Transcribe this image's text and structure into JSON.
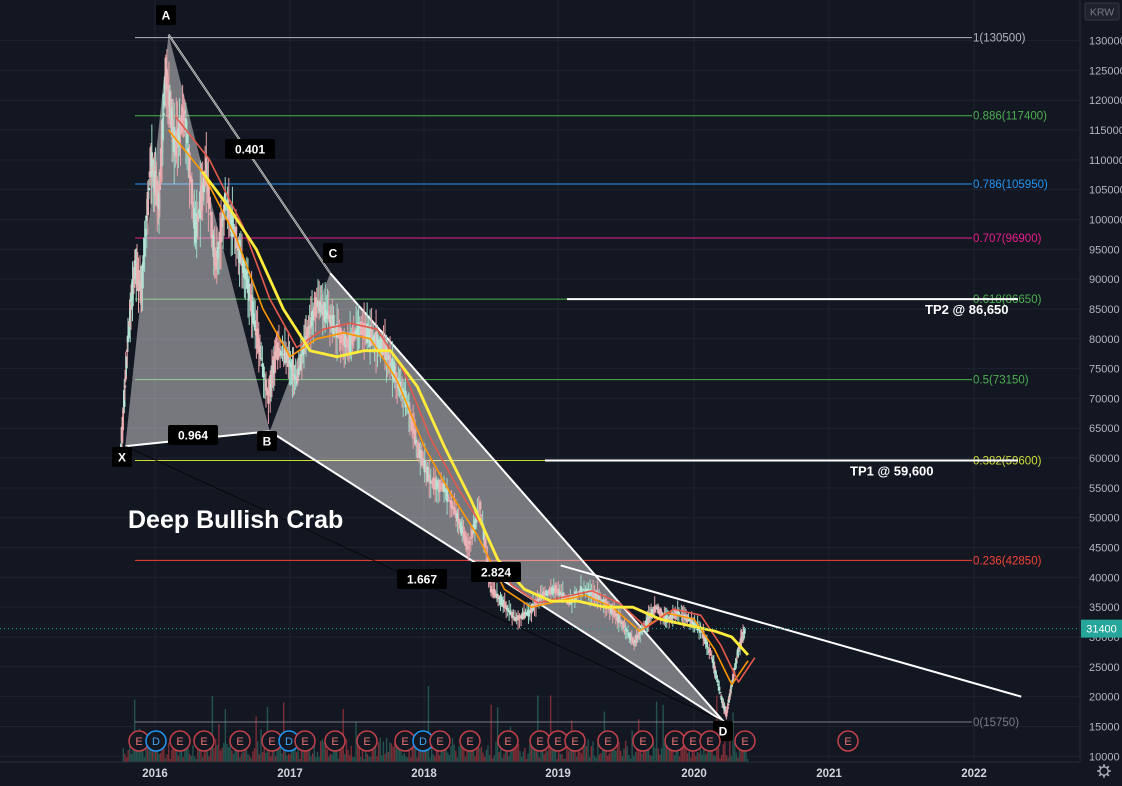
{
  "chart_data": {
    "type": "candlestick",
    "currency": "KRW",
    "x_ticks": [
      "2016",
      "2017",
      "2018",
      "2019",
      "2020",
      "2021",
      "2022"
    ],
    "y_ticks": [
      10000,
      15000,
      20000,
      25000,
      30000,
      35000,
      40000,
      45000,
      50000,
      55000,
      60000,
      65000,
      70000,
      75000,
      80000,
      85000,
      90000,
      95000,
      100000,
      105000,
      110000,
      115000,
      120000,
      125000,
      130000
    ],
    "ylim": [
      9000,
      135000
    ],
    "last_price": {
      "value": 31400,
      "label": "31400"
    },
    "fib_levels": [
      {
        "ratio": "1",
        "value": 130500,
        "label": "1(130500)",
        "color": "#b2b5be"
      },
      {
        "ratio": "0.886",
        "value": 117400,
        "label": "0.886(117400)",
        "color": "#4caf50"
      },
      {
        "ratio": "0.786",
        "value": 105950,
        "label": "0.786(105950)",
        "color": "#2196f3"
      },
      {
        "ratio": "0.707",
        "value": 96900,
        "label": "0.707(96900)",
        "color": "#e91e8c"
      },
      {
        "ratio": "0.618",
        "value": 86650,
        "label": "0.618(86650)",
        "color": "#4caf50"
      },
      {
        "ratio": "0.5",
        "value": 73150,
        "label": "0.5(73150)",
        "color": "#4caf50"
      },
      {
        "ratio": "0.382",
        "value": 59600,
        "label": "0.382(59600)",
        "color": "#cddc39"
      },
      {
        "ratio": "0.236",
        "value": 42850,
        "label": "0.236(42850)",
        "color": "#f44336"
      },
      {
        "ratio": "0",
        "value": 15750,
        "label": "0(15750)",
        "color": "#787b86"
      }
    ],
    "pattern": {
      "title": "Deep Bullish Crab",
      "points": [
        {
          "name": "X",
          "date": 2015.78,
          "value": 62000
        },
        {
          "name": "A",
          "date": 2016.1,
          "value": 131000
        },
        {
          "name": "B",
          "date": 2016.85,
          "value": 64500
        },
        {
          "name": "C",
          "date": 2017.3,
          "value": 91000
        },
        {
          "name": "D",
          "date": 2020.22,
          "value": 15800
        }
      ],
      "ratios": [
        "0.401",
        "0.964",
        "1.667",
        "2.824"
      ]
    },
    "targets": [
      {
        "label": "TP1 @ 59,600",
        "value": 59600
      },
      {
        "label": "TP2 @ 86,650",
        "value": 86650
      }
    ],
    "trendlines": [
      {
        "start": {
          "date": 2019.02,
          "value": 42000
        },
        "end": {
          "date": 2022.35,
          "value": 20000
        }
      }
    ],
    "earnings_marker": "E",
    "dividend_marker": "D",
    "price_series": [
      [
        2015.75,
        62000
      ],
      [
        2015.8,
        80000
      ],
      [
        2015.85,
        92000
      ],
      [
        2015.9,
        88000
      ],
      [
        2015.97,
        110000
      ],
      [
        2016.03,
        103000
      ],
      [
        2016.08,
        125000
      ],
      [
        2016.15,
        112000
      ],
      [
        2016.22,
        118000
      ],
      [
        2016.3,
        98000
      ],
      [
        2016.38,
        108000
      ],
      [
        2016.45,
        92000
      ],
      [
        2016.52,
        103000
      ],
      [
        2016.6,
        97000
      ],
      [
        2016.68,
        90000
      ],
      [
        2016.76,
        80000
      ],
      [
        2016.84,
        70000
      ],
      [
        2016.9,
        78000
      ],
      [
        2016.98,
        77000
      ],
      [
        2017.05,
        73000
      ],
      [
        2017.12,
        80000
      ],
      [
        2017.2,
        86000
      ],
      [
        2017.28,
        84000
      ],
      [
        2017.36,
        81000
      ],
      [
        2017.44,
        79000
      ],
      [
        2017.52,
        82000
      ],
      [
        2017.62,
        80000
      ],
      [
        2017.72,
        78000
      ],
      [
        2017.8,
        73000
      ],
      [
        2017.88,
        69000
      ],
      [
        2017.95,
        62000
      ],
      [
        2018.05,
        56000
      ],
      [
        2018.15,
        55000
      ],
      [
        2018.25,
        50000
      ],
      [
        2018.33,
        45000
      ],
      [
        2018.42,
        52000
      ],
      [
        2018.5,
        38000
      ],
      [
        2018.58,
        36000
      ],
      [
        2018.68,
        33000
      ],
      [
        2018.78,
        34000
      ],
      [
        2018.88,
        37000
      ],
      [
        2018.98,
        38000
      ],
      [
        2019.08,
        36000
      ],
      [
        2019.18,
        38000
      ],
      [
        2019.28,
        37000
      ],
      [
        2019.38,
        35000
      ],
      [
        2019.48,
        32000
      ],
      [
        2019.56,
        29000
      ],
      [
        2019.64,
        32000
      ],
      [
        2019.72,
        35000
      ],
      [
        2019.8,
        33000
      ],
      [
        2019.88,
        34000
      ],
      [
        2019.96,
        33000
      ],
      [
        2020.06,
        31000
      ],
      [
        2020.14,
        26000
      ],
      [
        2020.2,
        20000
      ],
      [
        2020.24,
        17000
      ],
      [
        2020.28,
        22000
      ],
      [
        2020.33,
        28000
      ],
      [
        2020.38,
        31400
      ]
    ],
    "ma_slow_series": [
      [
        2016.35,
        108000
      ],
      [
        2016.55,
        102000
      ],
      [
        2016.75,
        95000
      ],
      [
        2016.95,
        85000
      ],
      [
        2017.15,
        78000
      ],
      [
        2017.35,
        77000
      ],
      [
        2017.55,
        78000
      ],
      [
        2017.75,
        78000
      ],
      [
        2017.95,
        72000
      ],
      [
        2018.15,
        62000
      ],
      [
        2018.35,
        53000
      ],
      [
        2018.55,
        43000
      ],
      [
        2018.75,
        38000
      ],
      [
        2018.95,
        36000
      ],
      [
        2019.15,
        36000
      ],
      [
        2019.35,
        35000
      ],
      [
        2019.55,
        35000
      ],
      [
        2019.75,
        33000
      ],
      [
        2019.95,
        32000
      ],
      [
        2020.15,
        31000
      ],
      [
        2020.28,
        30000
      ],
      [
        2020.4,
        27000
      ]
    ],
    "ma_mid_series": [
      [
        2016.1,
        115000
      ],
      [
        2016.35,
        108000
      ],
      [
        2016.6,
        97000
      ],
      [
        2016.8,
        85000
      ],
      [
        2017.0,
        77000
      ],
      [
        2017.2,
        80000
      ],
      [
        2017.4,
        81000
      ],
      [
        2017.6,
        80000
      ],
      [
        2017.8,
        73000
      ],
      [
        2018.0,
        62000
      ],
      [
        2018.2,
        54000
      ],
      [
        2018.4,
        47000
      ],
      [
        2018.6,
        38000
      ],
      [
        2018.8,
        35000
      ],
      [
        2019.0,
        36000
      ],
      [
        2019.2,
        37000
      ],
      [
        2019.4,
        35000
      ],
      [
        2019.6,
        31000
      ],
      [
        2019.8,
        34000
      ],
      [
        2020.0,
        33000
      ],
      [
        2020.15,
        28000
      ],
      [
        2020.28,
        22000
      ],
      [
        2020.4,
        26000
      ]
    ]
  }
}
